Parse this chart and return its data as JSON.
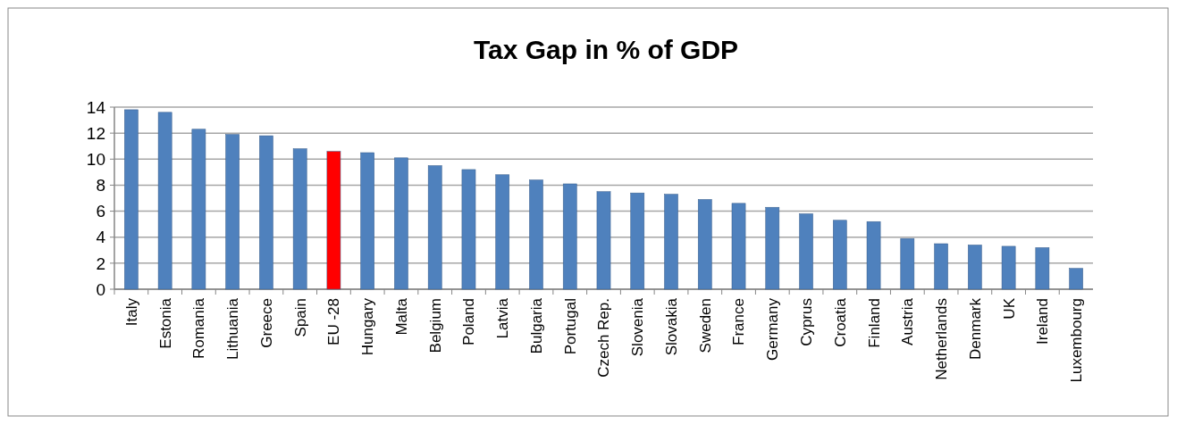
{
  "chart_data": {
    "type": "bar",
    "title": "Tax Gap in % of GDP",
    "categories": [
      "Italy",
      "Estonia",
      "Romania",
      "Lithuania",
      "Greece",
      "Spain",
      "EU -28",
      "Hungary",
      "Malta",
      "Belgium",
      "Poland",
      "Latvia",
      "Bulgaria",
      "Portugal",
      "Czech Rep.",
      "Slovenia",
      "Slovakia",
      "Sweden",
      "France",
      "Germany",
      "Cyprus",
      "Croatia",
      "Finland",
      "Austria",
      "Netherlands",
      "Denmark",
      "UK",
      "Ireland",
      "Luxembourg"
    ],
    "values": [
      13.8,
      13.6,
      12.3,
      11.9,
      11.8,
      10.8,
      10.6,
      10.5,
      10.1,
      9.5,
      9.2,
      8.8,
      8.4,
      8.1,
      7.5,
      7.4,
      7.3,
      6.9,
      6.6,
      6.3,
      5.8,
      5.3,
      5.2,
      3.9,
      3.5,
      3.4,
      3.3,
      3.2,
      1.6
    ],
    "colors": [
      "#4f81bd",
      "#4f81bd",
      "#4f81bd",
      "#4f81bd",
      "#4f81bd",
      "#4f81bd",
      "#ff0000",
      "#4f81bd",
      "#4f81bd",
      "#4f81bd",
      "#4f81bd",
      "#4f81bd",
      "#4f81bd",
      "#4f81bd",
      "#4f81bd",
      "#4f81bd",
      "#4f81bd",
      "#4f81bd",
      "#4f81bd",
      "#4f81bd",
      "#4f81bd",
      "#4f81bd",
      "#4f81bd",
      "#4f81bd",
      "#4f81bd",
      "#4f81bd",
      "#4f81bd",
      "#4f81bd",
      "#4f81bd"
    ],
    "ylim": [
      0,
      14
    ],
    "yticks": [
      0,
      2,
      4,
      6,
      8,
      10,
      12,
      14
    ],
    "grid": "y"
  }
}
